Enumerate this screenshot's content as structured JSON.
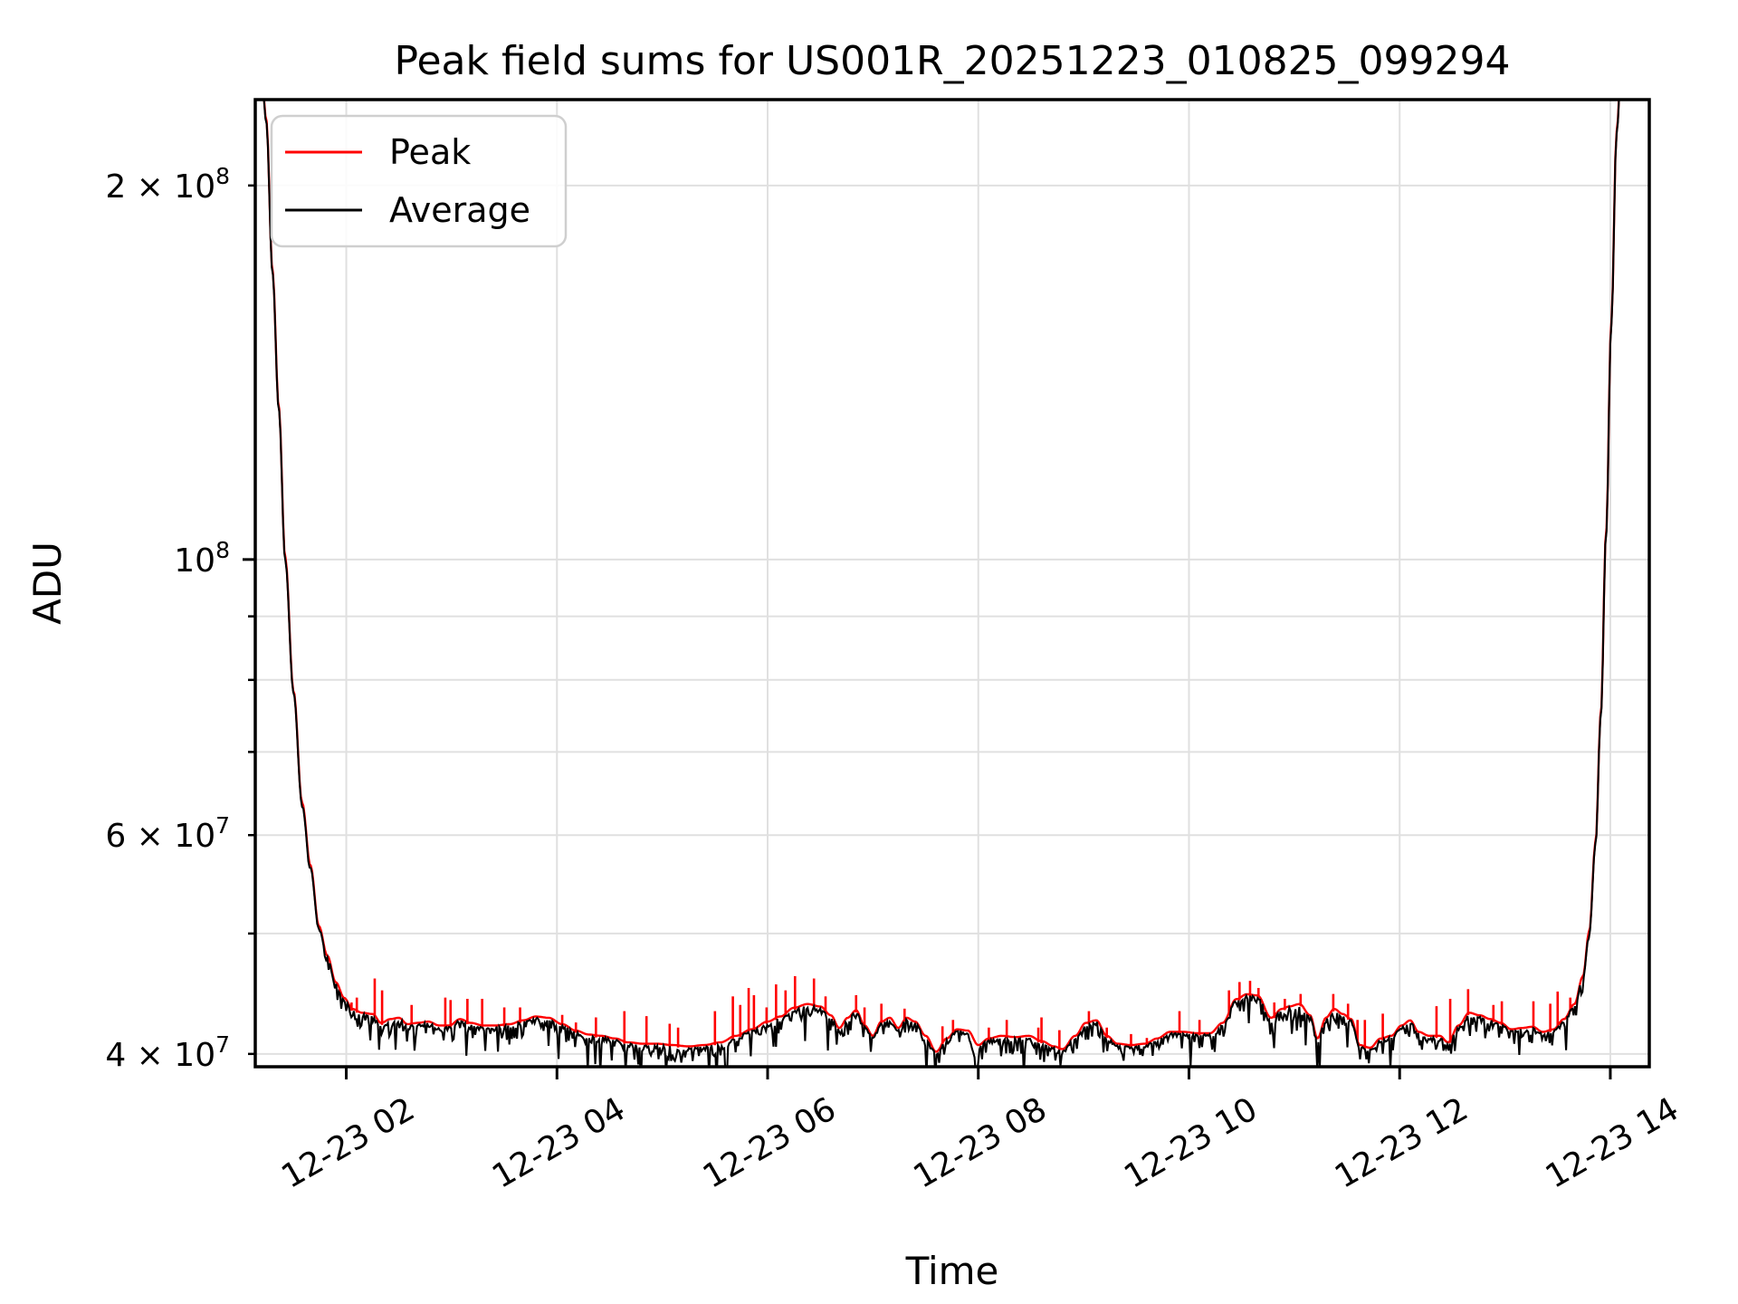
{
  "figure": {
    "title": "Peak field sums for US001R_20251223_010825_099294",
    "xlabel": "Time",
    "ylabel": "ADU",
    "background": "#ffffff"
  },
  "legend": {
    "items": [
      {
        "label": "Peak",
        "color": "#ff0000"
      },
      {
        "label": "Average",
        "color": "#000000"
      }
    ]
  },
  "chart_data": {
    "type": "line",
    "title": "Peak field sums for US001R_20251223_010825_099294",
    "xlabel": "Time",
    "ylabel": "ADU",
    "y_scale": "log",
    "grid": true,
    "legend_position": "upper left",
    "x_unit": "hours on 2025-12-23",
    "x_range": [
      1.136,
      14.37
    ],
    "y_range": [
      39060000.0,
      234500000.0
    ],
    "x_ticks": [
      {
        "t": 2,
        "label": "12-23 02"
      },
      {
        "t": 4,
        "label": "12-23 04"
      },
      {
        "t": 6,
        "label": "12-23 06"
      },
      {
        "t": 8,
        "label": "12-23 08"
      },
      {
        "t": 10,
        "label": "12-23 10"
      },
      {
        "t": 12,
        "label": "12-23 12"
      },
      {
        "t": 14,
        "label": "12-23 14"
      }
    ],
    "y_ticks_labeled": [
      {
        "value": 200000000.0,
        "mantissa": "2 × 10",
        "exp": "8",
        "major": false
      },
      {
        "value": 100000000.0,
        "mantissa": "10",
        "exp": "8",
        "major": true
      },
      {
        "value": 60000000.0,
        "mantissa": "6 × 10",
        "exp": "7",
        "major": false
      },
      {
        "value": 40000000.0,
        "mantissa": "4 × 10",
        "exp": "7",
        "major": false
      }
    ],
    "y_ticks_minor": [
      50000000.0,
      70000000.0,
      80000000.0,
      90000000.0
    ],
    "grid_y_values": [
      40000000.0,
      50000000.0,
      60000000.0,
      70000000.0,
      80000000.0,
      90000000.0,
      100000000.0,
      200000000.0
    ],
    "colors": {
      "peak": "#ff0000",
      "average": "#000000",
      "grid": "#e0e0e0",
      "legend_border": "#cfcfcf"
    },
    "series": [
      {
        "name": "Average",
        "style": "smooth base curve with downward sample noise",
        "keypoints": [
          [
            1.136,
            245000000.0
          ],
          [
            1.2,
            242000000.0
          ],
          [
            1.24,
            225000000.0
          ],
          [
            1.3,
            170000000.0
          ],
          [
            1.36,
            132000000.0
          ],
          [
            1.42,
            100000000.0
          ],
          [
            1.5,
            78000000.0
          ],
          [
            1.58,
            63500000.0
          ],
          [
            1.66,
            56500000.0
          ],
          [
            1.74,
            50500000.0
          ],
          [
            1.82,
            47800000.0
          ],
          [
            1.9,
            45500000.0
          ],
          [
            1.98,
            44200000.0
          ],
          [
            2.06,
            43300000.0
          ],
          [
            2.15,
            43000000.0
          ],
          [
            2.25,
            42900000.0
          ],
          [
            2.33,
            42200000.0
          ],
          [
            2.42,
            42500000.0
          ],
          [
            2.5,
            42600000.0
          ],
          [
            2.58,
            42100000.0
          ],
          [
            2.68,
            42200000.0
          ],
          [
            2.78,
            42300000.0
          ],
          [
            2.88,
            42000000.0
          ],
          [
            2.98,
            42000000.0
          ],
          [
            3.08,
            42500000.0
          ],
          [
            3.18,
            42200000.0
          ],
          [
            3.3,
            42000000.0
          ],
          [
            3.42,
            42000000.0
          ],
          [
            3.55,
            42100000.0
          ],
          [
            3.68,
            42400000.0
          ],
          [
            3.8,
            42700000.0
          ],
          [
            3.92,
            42600000.0
          ],
          [
            4.05,
            42100000.0
          ],
          [
            4.18,
            41600000.0
          ],
          [
            4.3,
            41300000.0
          ],
          [
            4.42,
            41200000.0
          ],
          [
            4.55,
            41000000.0
          ],
          [
            4.68,
            40700000.0
          ],
          [
            4.82,
            40600000.0
          ],
          [
            4.95,
            40600000.0
          ],
          [
            5.1,
            40500000.0
          ],
          [
            5.25,
            40400000.0
          ],
          [
            5.4,
            40500000.0
          ],
          [
            5.55,
            40700000.0
          ],
          [
            5.7,
            41200000.0
          ],
          [
            5.85,
            41700000.0
          ],
          [
            6.0,
            42300000.0
          ],
          [
            6.12,
            42700000.0
          ],
          [
            6.25,
            43400000.0
          ],
          [
            6.38,
            43700000.0
          ],
          [
            6.5,
            43500000.0
          ],
          [
            6.6,
            42800000.0
          ],
          [
            6.68,
            41800000.0
          ],
          [
            6.76,
            42600000.0
          ],
          [
            6.84,
            43200000.0
          ],
          [
            6.92,
            42000000.0
          ],
          [
            7.0,
            41200000.0
          ],
          [
            7.08,
            42300000.0
          ],
          [
            7.16,
            42600000.0
          ],
          [
            7.24,
            41800000.0
          ],
          [
            7.32,
            42600000.0
          ],
          [
            7.4,
            42300000.0
          ],
          [
            7.5,
            41200000.0
          ],
          [
            7.6,
            40000000.0
          ],
          [
            7.7,
            41000000.0
          ],
          [
            7.8,
            41700000.0
          ],
          [
            7.9,
            41600000.0
          ],
          [
            8.0,
            40500000.0
          ],
          [
            8.1,
            41000000.0
          ],
          [
            8.22,
            41200000.0
          ],
          [
            8.35,
            41100000.0
          ],
          [
            8.48,
            41200000.0
          ],
          [
            8.6,
            40800000.0
          ],
          [
            8.72,
            40400000.0
          ],
          [
            8.8,
            40200000.0
          ],
          [
            8.92,
            41200000.0
          ],
          [
            9.02,
            42200000.0
          ],
          [
            9.12,
            42400000.0
          ],
          [
            9.22,
            41200000.0
          ],
          [
            9.32,
            40600000.0
          ],
          [
            9.45,
            40500000.0
          ],
          [
            9.58,
            40600000.0
          ],
          [
            9.7,
            41000000.0
          ],
          [
            9.82,
            41500000.0
          ],
          [
            9.95,
            41500000.0
          ],
          [
            10.08,
            41400000.0
          ],
          [
            10.2,
            41400000.0
          ],
          [
            10.32,
            42200000.0
          ],
          [
            10.45,
            44100000.0
          ],
          [
            10.55,
            44500000.0
          ],
          [
            10.65,
            44400000.0
          ],
          [
            10.78,
            42600000.0
          ],
          [
            10.88,
            43300000.0
          ],
          [
            10.95,
            43500000.0
          ],
          [
            11.05,
            43700000.0
          ],
          [
            11.15,
            42800000.0
          ],
          [
            11.22,
            41000000.0
          ],
          [
            11.3,
            42600000.0
          ],
          [
            11.38,
            43300000.0
          ],
          [
            11.46,
            42900000.0
          ],
          [
            11.54,
            42500000.0
          ],
          [
            11.62,
            40500000.0
          ],
          [
            11.72,
            40300000.0
          ],
          [
            11.82,
            41000000.0
          ],
          [
            11.92,
            41200000.0
          ],
          [
            12.02,
            42000000.0
          ],
          [
            12.1,
            42400000.0
          ],
          [
            12.18,
            41500000.0
          ],
          [
            12.28,
            41200000.0
          ],
          [
            12.38,
            41200000.0
          ],
          [
            12.46,
            40700000.0
          ],
          [
            12.56,
            42000000.0
          ],
          [
            12.66,
            43000000.0
          ],
          [
            12.76,
            42800000.0
          ],
          [
            12.86,
            42500000.0
          ],
          [
            12.96,
            42200000.0
          ],
          [
            13.06,
            41700000.0
          ],
          [
            13.16,
            41800000.0
          ],
          [
            13.26,
            41900000.0
          ],
          [
            13.36,
            41500000.0
          ],
          [
            13.46,
            41700000.0
          ],
          [
            13.56,
            42500000.0
          ],
          [
            13.66,
            43700000.0
          ],
          [
            13.74,
            46000000.0
          ],
          [
            13.8,
            50000000.0
          ],
          [
            13.86,
            59000000.0
          ],
          [
            13.91,
            75000000.0
          ],
          [
            13.96,
            105000000.0
          ],
          [
            14.01,
            155000000.0
          ],
          [
            14.06,
            220000000.0
          ],
          [
            14.1,
            245000000.0
          ],
          [
            14.37,
            260000000.0
          ]
        ],
        "noise": {
          "seed": 1337,
          "max_downward_fraction": 0.068,
          "steep_slope_damp_threshold": 0.35
        }
      },
      {
        "name": "Peak",
        "style": "smooth envelope just above Average plus vertical spikes",
        "envelope_gain": 1.004,
        "spikes": [
          [
            2.05,
            44000000.0
          ],
          [
            2.1,
            44400000.0
          ],
          [
            2.27,
            46000000.0
          ],
          [
            2.34,
            45000000.0
          ],
          [
            2.62,
            43800000.0
          ],
          [
            2.94,
            44400000.0
          ],
          [
            2.99,
            44200000.0
          ],
          [
            3.15,
            44300000.0
          ],
          [
            3.29,
            44300000.0
          ],
          [
            3.5,
            43600000.0
          ],
          [
            3.65,
            43600000.0
          ],
          [
            4.05,
            43000000.0
          ],
          [
            4.18,
            42400000.0
          ],
          [
            4.37,
            42800000.0
          ],
          [
            4.64,
            43300000.0
          ],
          [
            4.85,
            42900000.0
          ],
          [
            5.07,
            42300000.0
          ],
          [
            5.15,
            42000000.0
          ],
          [
            5.5,
            43300000.0
          ],
          [
            5.67,
            44500000.0
          ],
          [
            5.74,
            43800000.0
          ],
          [
            5.82,
            45200000.0
          ],
          [
            5.87,
            44600000.0
          ],
          [
            5.99,
            43600000.0
          ],
          [
            6.08,
            45500000.0
          ],
          [
            6.17,
            45000000.0
          ],
          [
            6.26,
            46200000.0
          ],
          [
            6.44,
            46000000.0
          ],
          [
            6.55,
            44500000.0
          ],
          [
            6.84,
            44600000.0
          ],
          [
            6.92,
            43600000.0
          ],
          [
            7.08,
            43900000.0
          ],
          [
            7.3,
            43500000.0
          ],
          [
            7.66,
            42100000.0
          ],
          [
            7.76,
            42600000.0
          ],
          [
            8.1,
            42000000.0
          ],
          [
            8.27,
            42600000.0
          ],
          [
            8.57,
            42000000.0
          ],
          [
            8.6,
            42800000.0
          ],
          [
            8.77,
            41800000.0
          ],
          [
            9.05,
            43300000.0
          ],
          [
            9.22,
            42000000.0
          ],
          [
            9.45,
            41500000.0
          ],
          [
            9.6,
            41200000.0
          ],
          [
            9.91,
            43300000.0
          ],
          [
            10.1,
            42600000.0
          ],
          [
            10.38,
            45000000.0
          ],
          [
            10.48,
            45700000.0
          ],
          [
            10.58,
            45800000.0
          ],
          [
            10.66,
            45200000.0
          ],
          [
            10.81,
            44000000.0
          ],
          [
            10.91,
            44300000.0
          ],
          [
            11.06,
            44700000.0
          ],
          [
            11.37,
            44700000.0
          ],
          [
            11.51,
            43900000.0
          ],
          [
            11.6,
            42600000.0
          ],
          [
            11.67,
            42600000.0
          ],
          [
            11.84,
            43100000.0
          ],
          [
            12.35,
            43700000.0
          ],
          [
            12.48,
            44300000.0
          ],
          [
            12.65,
            45100000.0
          ],
          [
            12.89,
            43800000.0
          ],
          [
            12.97,
            44100000.0
          ],
          [
            13.27,
            44100000.0
          ],
          [
            13.43,
            43900000.0
          ],
          [
            13.5,
            44900000.0
          ],
          [
            13.62,
            44400000.0
          ]
        ]
      }
    ]
  }
}
